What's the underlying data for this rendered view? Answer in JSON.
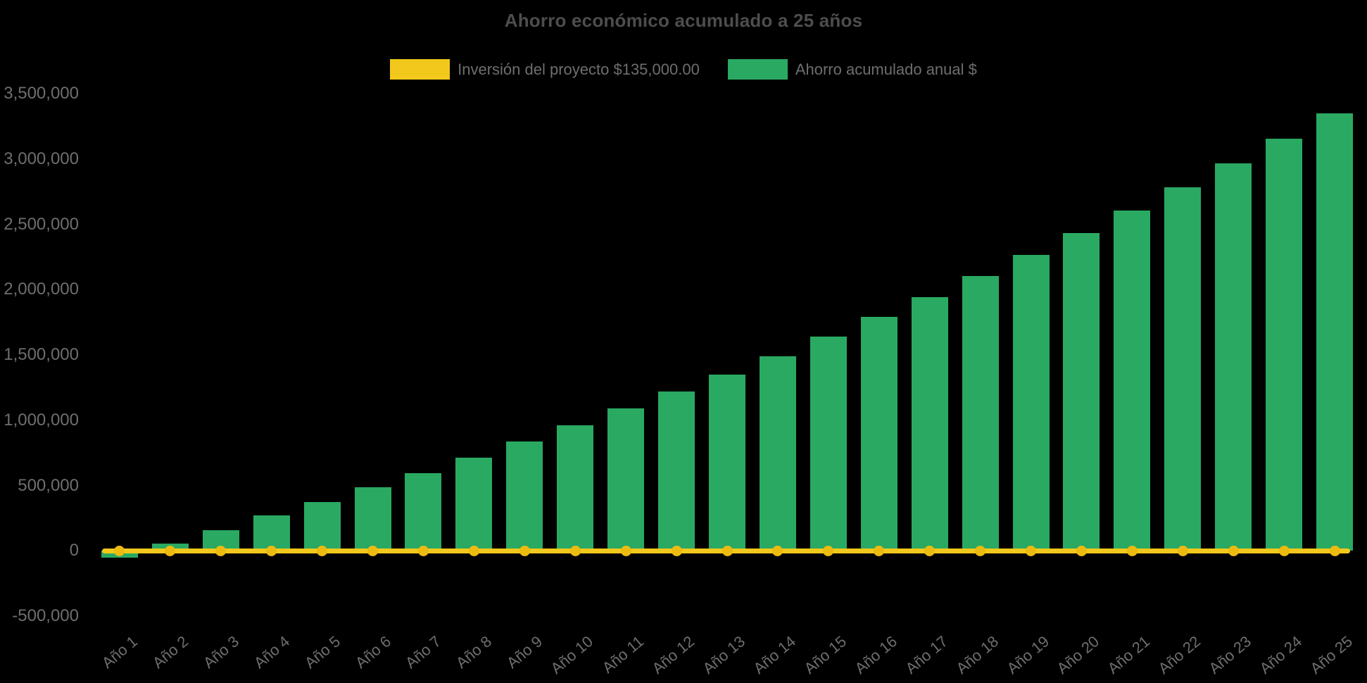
{
  "chart_data": {
    "type": "bar",
    "title": "Ahorro económico acumulado a 25 años",
    "categories": [
      "Año 1",
      "Año 2",
      "Año 3",
      "Año 4",
      "Año 5",
      "Año 6",
      "Año 7",
      "Año 8",
      "Año 9",
      "Año 10",
      "Año 11",
      "Año 12",
      "Año 13",
      "Año 14",
      "Año 15",
      "Año 16",
      "Año 17",
      "Año 18",
      "Año 19",
      "Año 20",
      "Año 21",
      "Año 22",
      "Año 23",
      "Año 24",
      "Año 25"
    ],
    "series": [
      {
        "name": "Inversión del proyecto $135,000.00",
        "type": "line",
        "color": "#F2C81C",
        "marker_color": "#EDBB10",
        "values": [
          0,
          0,
          0,
          0,
          0,
          0,
          0,
          0,
          0,
          0,
          0,
          0,
          0,
          0,
          0,
          0,
          0,
          0,
          0,
          0,
          0,
          0,
          0,
          0,
          0
        ]
      },
      {
        "name": "Ahorro acumulado anual $",
        "type": "bar",
        "color": "#2AA962",
        "values": [
          -50000,
          55000,
          160000,
          270000,
          375000,
          485000,
          595000,
          715000,
          835000,
          960000,
          1090000,
          1220000,
          1350000,
          1490000,
          1640000,
          1790000,
          1940000,
          2105000,
          2265000,
          2435000,
          2605000,
          2785000,
          2965000,
          3155000,
          3350000
        ]
      }
    ],
    "ylim": [
      -500000,
      3500000
    ],
    "y_tick_interval": 500000,
    "y_tick_labels": [
      "3,500,000",
      "3,000,000",
      "2,500,000",
      "2,000,000",
      "1,500,000",
      "1,000,000",
      "500,000",
      "0",
      "-500,000"
    ],
    "xlabel": "",
    "ylabel": "",
    "legend_position": "top",
    "grid": "off",
    "background": "#000000",
    "text_colors": {
      "title": "#4D4D4D",
      "legend": "#6E6E6E",
      "ticks": "#6E6E6E"
    }
  }
}
